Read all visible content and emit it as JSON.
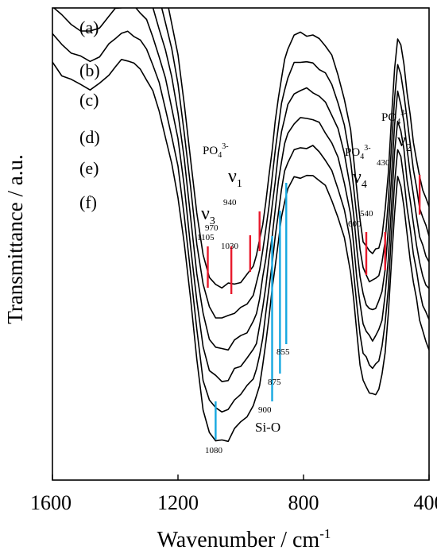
{
  "chart_data": {
    "type": "line",
    "title": "",
    "xlabel": "Wavenumber / cm",
    "xlabel_sup": "-1",
    "ylabel": "Transmittance / a.u.",
    "xlim": [
      1600,
      400
    ],
    "x_reversed": true,
    "ylim": [
      0,
      100
    ],
    "y_unit": "arbitrary (offset spectra, no y tick labels)",
    "x_ticks": [
      "1600",
      "1200",
      "800",
      "400"
    ],
    "grid": false,
    "legend": "none",
    "series_offset": 6,
    "base_series": {
      "x": [
        1600,
        1570,
        1540,
        1510,
        1480,
        1450,
        1420,
        1400,
        1380,
        1360,
        1340,
        1320,
        1300,
        1280,
        1260,
        1240,
        1220,
        1200,
        1180,
        1160,
        1140,
        1120,
        1100,
        1080,
        1060,
        1040,
        1020,
        1000,
        980,
        960,
        950,
        940,
        930,
        920,
        910,
        900,
        890,
        880,
        870,
        860,
        850,
        830,
        810,
        790,
        770,
        750,
        730,
        710,
        690,
        670,
        650,
        640,
        630,
        620,
        610,
        600,
        590,
        580,
        570,
        560,
        550,
        540,
        530,
        520,
        510,
        500,
        490,
        480,
        470,
        460,
        450,
        440,
        430,
        420,
        410,
        400
      ],
      "y": [
        88.5,
        86,
        84.5,
        83.5,
        83,
        84,
        86,
        87.5,
        88.5,
        89,
        88.5,
        87,
        85,
        82,
        78,
        73,
        67,
        60,
        50,
        38,
        26,
        18,
        13,
        11.5,
        11,
        11.2,
        11.4,
        12.2,
        13.5,
        15.6,
        17.5,
        20.5,
        24.5,
        29,
        34.5,
        40,
        45.5,
        51,
        55.5,
        59,
        61.5,
        64,
        64.5,
        64.5,
        64.3,
        63.5,
        62,
        59.5,
        56,
        51,
        44,
        38,
        31,
        25,
        21,
        19.5,
        18.5,
        18,
        18.5,
        19.5,
        22,
        27,
        35,
        46,
        57,
        64,
        62,
        58,
        52,
        47,
        42,
        38,
        34,
        31.5,
        29.5,
        28
      ]
    },
    "series": [
      {
        "name": "(a)",
        "offset_index": 0
      },
      {
        "name": "(b)",
        "offset_index": 1
      },
      {
        "name": "(c)",
        "offset_index": 2
      },
      {
        "name": "(d)",
        "offset_index": 3
      },
      {
        "name": "(e)",
        "offset_index": 4
      },
      {
        "name": "(f)",
        "offset_index": 5
      }
    ],
    "annotations": {
      "po4_groups": [
        {
          "ion": "PO",
          "sub": "4",
          "sup": "3-",
          "mode": "ν",
          "mode_sub": "3",
          "wavenumbers": [
            1105,
            1030
          ]
        },
        {
          "ion": "PO",
          "sub": "4",
          "sup": "3-",
          "mode": "ν",
          "mode_sub": "1",
          "wavenumbers": [
            970,
            940
          ]
        },
        {
          "ion": "PO",
          "sub": "4",
          "sup": "3-",
          "mode": "ν",
          "mode_sub": "4",
          "wavenumbers": [
            600,
            540
          ]
        },
        {
          "ion": "PO",
          "sub": "4",
          "sup": "3-",
          "mode": "ν",
          "mode_sub": "2",
          "wavenumbers": [
            430
          ]
        }
      ],
      "si_o": {
        "label": "Si-O",
        "wavenumbers": [
          1080,
          900,
          875,
          855
        ]
      },
      "peak_labels": [
        "1105",
        "1030",
        "970",
        "940",
        "600",
        "540",
        "430",
        "1080",
        "900",
        "875",
        "855"
      ],
      "colors": {
        "po4_marker": "#e8192c",
        "si_o_marker": "#16a8e0",
        "curve": "#000000"
      }
    }
  }
}
